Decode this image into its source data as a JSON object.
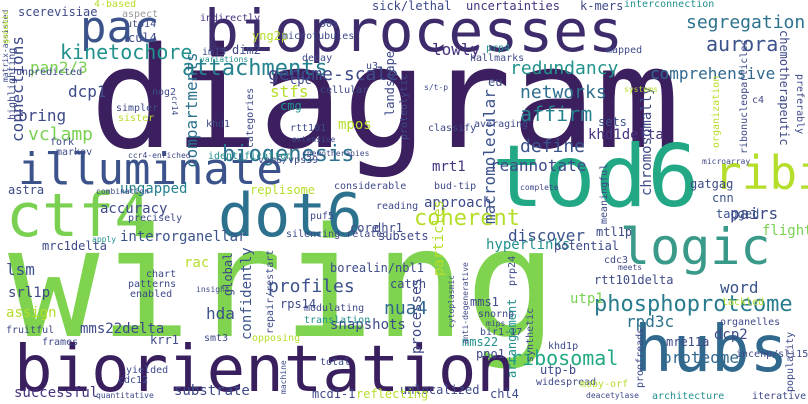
{
  "words": [
    {
      "text": "diagram",
      "color": "#3b1f5e"
    },
    {
      "text": "wiring",
      "color": "#7fd34e"
    },
    {
      "text": "bioprocesses",
      "color": "#3d2b6b"
    },
    {
      "text": "biorientation",
      "color": "#3a1f5f"
    },
    {
      "text": "tod6",
      "color": "#22a884"
    },
    {
      "text": "dot6",
      "color": "#2c728e"
    },
    {
      "text": "ctf4",
      "color": "#7ad151"
    },
    {
      "text": "hubs",
      "color": "#31688e"
    },
    {
      "text": "logic",
      "color": "#3a9a8a"
    },
    {
      "text": "illuminate",
      "color": "#3b528b"
    },
    {
      "text": "ribi",
      "color": "#b5de2b"
    },
    {
      "text": "pac",
      "color": "#3b528b"
    },
    {
      "text": "attachments",
      "color": "#26828e"
    },
    {
      "text": "kinetochore",
      "color": "#21918c"
    },
    {
      "text": "biogenesis",
      "color": "#2c728e"
    },
    {
      "text": "coherent",
      "color": "#b5de2b"
    },
    {
      "text": "phosphoproteome",
      "color": "#287c8e"
    },
    {
      "text": "segregation",
      "color": "#2c728e"
    },
    {
      "text": "aurora",
      "color": "#3b528b"
    },
    {
      "text": "comprehensive",
      "color": "#31688e"
    },
    {
      "text": "genome-scale",
      "color": "#3e4a89"
    },
    {
      "text": "redundancy",
      "color": "#21918c"
    },
    {
      "text": "lowly",
      "color": "#46327e"
    },
    {
      "text": "networks",
      "color": "#2e6f8e"
    },
    {
      "text": "affirm",
      "color": "#26828e"
    },
    {
      "text": "define",
      "color": "#3b528b"
    },
    {
      "text": "reannotate",
      "color": "#3e4a89"
    },
    {
      "text": "khd1delta",
      "color": "#46327e"
    },
    {
      "text": "sets",
      "color": "#3b528b"
    },
    {
      "text": "ribosomal",
      "color": "#22a884"
    },
    {
      "text": "proteome",
      "color": "#31688e"
    },
    {
      "text": "rpd3c",
      "color": "#2c728e"
    },
    {
      "text": "word",
      "color": "#3b528b"
    },
    {
      "text": "pairs",
      "color": "#3e4a89"
    },
    {
      "text": "discover",
      "color": "#3b528b"
    },
    {
      "text": "profiles",
      "color": "#3b528b"
    },
    {
      "text": "nua4",
      "color": "#31688e"
    },
    {
      "text": "hda",
      "color": "#3b528b"
    },
    {
      "text": "bring",
      "color": "#3e4a89"
    },
    {
      "text": "dcp1",
      "color": "#3e4a89"
    },
    {
      "text": "vclamp",
      "color": "#7ad151"
    },
    {
      "text": "connections",
      "color": "#3e4a89"
    },
    {
      "text": "pan2/3",
      "color": "#7ad151"
    },
    {
      "text": "compartments",
      "color": "#2c728e"
    },
    {
      "text": "stfs",
      "color": "#b5de2b"
    },
    {
      "text": "cmg",
      "color": "#21918c"
    },
    {
      "text": "ungapped",
      "color": "#26828e"
    },
    {
      "text": "macromolecular",
      "color": "#3b528b"
    },
    {
      "text": "lsm",
      "color": "#3b528b"
    },
    {
      "text": "snapshots",
      "color": "#3e4a89"
    },
    {
      "text": "successful",
      "color": "#46327e"
    },
    {
      "text": "substrate",
      "color": "#3e4a89"
    },
    {
      "text": "mms22delta",
      "color": "#3e4a89"
    },
    {
      "text": "interorganellar",
      "color": "#3b528b"
    },
    {
      "text": "accuracy",
      "color": "#3e4a89"
    },
    {
      "text": "mms22",
      "color": "#21918c"
    },
    {
      "text": "mms1",
      "color": "#3e4a89"
    },
    {
      "text": "chl4",
      "color": "#3e4a89"
    },
    {
      "text": "rps14",
      "color": "#3e4a89"
    },
    {
      "text": "mrt1",
      "color": "#46327e"
    },
    {
      "text": "dhr1",
      "color": "#3e4a89"
    },
    {
      "text": "approach",
      "color": "#3e4a89"
    },
    {
      "text": "core",
      "color": "#3e4a89"
    },
    {
      "text": "mpos",
      "color": "#b5de2b"
    },
    {
      "text": "flight",
      "color": "#7ad151"
    },
    {
      "text": "utp1",
      "color": "#7ad151"
    },
    {
      "text": "dcp2",
      "color": "#3e4a89"
    },
    {
      "text": "mre11a",
      "color": "#3e4a89"
    },
    {
      "text": "cnn",
      "color": "#3b528b"
    },
    {
      "text": "gatgag",
      "color": "#3e4a89"
    },
    {
      "text": "tagged",
      "color": "#3b528b"
    },
    {
      "text": "chromosomally",
      "color": "#3e4a89"
    },
    {
      "text": "hyperlinks",
      "color": "#21918c"
    },
    {
      "text": "potential",
      "color": "#3e4a89"
    },
    {
      "text": "confidently",
      "color": "#3b528b"
    },
    {
      "text": "particles",
      "color": "#b5de2b"
    },
    {
      "text": "processes",
      "color": "#3e4a89"
    },
    {
      "text": "arrangement",
      "color": "#21918c"
    },
    {
      "text": "unlocalized",
      "color": "#3e4a89"
    },
    {
      "text": "cpc",
      "color": "#3e4a89"
    },
    {
      "text": "dim2",
      "color": "#3e4a89"
    },
    {
      "text": "aspect",
      "color": "#9a9a9a"
    },
    {
      "text": "scerevisiae",
      "color": "#3e4a89"
    },
    {
      "text": "cul4",
      "color": "#3e4a89"
    },
    {
      "text": "4-based",
      "color": "#b5de2b"
    },
    {
      "text": "utp14",
      "color": "#3e4a89"
    },
    {
      "text": "indirectly",
      "color": "#46327e"
    },
    {
      "text": "sick/lethal",
      "color": "#3e4a89"
    },
    {
      "text": "uncertainties",
      "color": "#46327e"
    },
    {
      "text": "k-mers",
      "color": "#3e4a89"
    },
    {
      "text": "interconnection",
      "color": "#21918c"
    },
    {
      "text": "yng2p",
      "color": "#b5de2b"
    },
    {
      "text": "90s",
      "color": "#3e4a89"
    },
    {
      "text": "microtubules",
      "color": "#3e4a89"
    },
    {
      "text": "im13",
      "color": "#3e4a89"
    },
    {
      "text": "variations",
      "color": "#21918c"
    },
    {
      "text": "decay",
      "color": "#3e4a89"
    },
    {
      "text": "u3",
      "color": "#3e4a89"
    },
    {
      "text": "prp4",
      "color": "#21918c"
    },
    {
      "text": "hallmarks",
      "color": "#3e4a89"
    },
    {
      "text": "mapped",
      "color": "#3e4a89"
    },
    {
      "text": "chemotherapeutic",
      "color": "#3e4a89"
    },
    {
      "text": "preferably",
      "color": "#3e4a89"
    },
    {
      "text": "eu",
      "color": "#3e4a89"
    },
    {
      "text": "cellular",
      "color": "#3e4a89"
    },
    {
      "text": "s/t-p",
      "color": "#3e4a89"
    },
    {
      "text": "systems",
      "color": "#b5de2b"
    },
    {
      "text": "nog2",
      "color": "#3e4a89"
    },
    {
      "text": "simpler",
      "color": "#3e4a89"
    },
    {
      "text": "sister",
      "color": "#b5de2b"
    },
    {
      "text": "cr14",
      "color": "#3e4a89"
    },
    {
      "text": "khd1",
      "color": "#3e4a89"
    },
    {
      "text": "categories",
      "color": "#3e4a89"
    },
    {
      "text": "rtt101",
      "color": "#3e4a89"
    },
    {
      "text": "landscape",
      "color": "#3e4a89"
    },
    {
      "text": "proteolytic",
      "color": "#3e4a89"
    },
    {
      "text": "classify",
      "color": "#3e4a89"
    },
    {
      "text": "averaging",
      "color": "#3e4a89"
    },
    {
      "text": "organization",
      "color": "#b5de2b"
    },
    {
      "text": "ribonucleoparticles",
      "color": "#3e4a89"
    },
    {
      "text": "c4",
      "color": "#3e4a89"
    },
    {
      "text": "chemotherapies",
      "color": "#3e4a89"
    },
    {
      "text": "vam6/vps39",
      "color": "#3e4a89"
    },
    {
      "text": "ccr4-enriched",
      "color": "#3e4a89"
    },
    {
      "text": "identification",
      "color": "#21918c"
    },
    {
      "text": "extensive",
      "color": "#3e4a89"
    },
    {
      "text": "markov",
      "color": "#3e4a89"
    },
    {
      "text": "fork",
      "color": "#3e4a89"
    },
    {
      "text": "microarray",
      "color": "#3e4a89"
    },
    {
      "text": "highlighting",
      "color": "#3e4a89"
    },
    {
      "text": "unpredicted",
      "color": "#3e4a89"
    },
    {
      "text": "matrix-assisted",
      "color": "#3e4a89"
    },
    {
      "text": "astra",
      "color": "#3e4a89"
    },
    {
      "text": "combination",
      "color": "#3e4a89"
    },
    {
      "text": "replisome",
      "color": "#b5de2b"
    },
    {
      "text": "considerable",
      "color": "#3e4a89"
    },
    {
      "text": "bud-tip",
      "color": "#3e4a89"
    },
    {
      "text": "meaningful",
      "color": "#3e4a89"
    },
    {
      "text": "reading",
      "color": "#3e4a89"
    },
    {
      "text": "complete",
      "color": "#3e4a89"
    },
    {
      "text": "precisely",
      "color": "#3e4a89"
    },
    {
      "text": "puf5",
      "color": "#3e4a89"
    },
    {
      "text": "silencing-related",
      "color": "#3e4a89"
    },
    {
      "text": "subsets",
      "color": "#3e4a89"
    },
    {
      "text": "mrc1delta",
      "color": "#3e4a89"
    },
    {
      "text": "apply",
      "color": "#21918c"
    },
    {
      "text": "srl1p",
      "color": "#3e4a89"
    },
    {
      "text": "assign",
      "color": "#b5de2b"
    },
    {
      "text": "rac",
      "color": "#b5de2b"
    },
    {
      "text": "chart",
      "color": "#3e4a89"
    },
    {
      "text": "patterns",
      "color": "#3e4a89"
    },
    {
      "text": "enabled",
      "color": "#3e4a89"
    },
    {
      "text": "insight",
      "color": "#3e4a89"
    },
    {
      "text": "global",
      "color": "#3e4a89"
    },
    {
      "text": "borealin/nbl1",
      "color": "#3e4a89"
    },
    {
      "text": "repair/restart",
      "color": "#3e4a89"
    },
    {
      "text": "modulating",
      "color": "#3e4a89"
    },
    {
      "text": "translation",
      "color": "#21918c"
    },
    {
      "text": "catch",
      "color": "#3e4a89"
    },
    {
      "text": "cytoplasmic",
      "color": "#3e4a89"
    },
    {
      "text": "snornp",
      "color": "#3e4a89"
    },
    {
      "text": "prp24",
      "color": "#3e4a89"
    },
    {
      "text": "mips",
      "color": "#3e4a89"
    },
    {
      "text": "anti-degenerative",
      "color": "#3e4a89"
    },
    {
      "text": "bir1-17",
      "color": "#3e4a89"
    },
    {
      "text": "pno1",
      "color": "#3e4a89"
    },
    {
      "text": "cdc3",
      "color": "#3e4a89"
    },
    {
      "text": "mtl1p",
      "color": "#3e4a89"
    },
    {
      "text": "rtt101delta",
      "color": "#3e4a89"
    },
    {
      "text": "meets",
      "color": "#3e4a89"
    },
    {
      "text": "tackled",
      "color": "#b5de2b"
    },
    {
      "text": "organelles",
      "color": "#3e4a89"
    },
    {
      "text": "incenp/sli15",
      "color": "#3e4a89"
    },
    {
      "text": "khd1p",
      "color": "#3e4a89"
    },
    {
      "text": "synthetic",
      "color": "#3e4a89"
    },
    {
      "text": "proofreads",
      "color": "#3e4a89"
    },
    {
      "text": "fruitful",
      "color": "#3e4a89"
    },
    {
      "text": "frames",
      "color": "#3e4a89"
    },
    {
      "text": "krr1",
      "color": "#3e4a89"
    },
    {
      "text": "smt3",
      "color": "#3e4a89"
    },
    {
      "text": "opposing",
      "color": "#b5de2b"
    },
    {
      "text": "total",
      "color": "#3e4a89"
    },
    {
      "text": "yielded",
      "color": "#3e4a89"
    },
    {
      "text": "cdc12",
      "color": "#3e4a89"
    },
    {
      "text": "quantitative",
      "color": "#3e4a89"
    },
    {
      "text": "mcd1-1",
      "color": "#3e4a89"
    },
    {
      "text": "reflecting",
      "color": "#b5de2b"
    },
    {
      "text": "machine",
      "color": "#3e4a89"
    },
    {
      "text": "widespread",
      "color": "#3e4a89"
    },
    {
      "text": "utp-b",
      "color": "#3e4a89"
    },
    {
      "text": "moby-orf",
      "color": "#b5de2b"
    },
    {
      "text": "deacetylase",
      "color": "#3e4a89"
    },
    {
      "text": "architecture",
      "color": "#21918c"
    },
    {
      "text": "iterative",
      "color": "#3e4a89"
    },
    {
      "text": "popularity",
      "color": "#3e4a89"
    },
    {
      "text": "genomic",
      "color": "#b5de2b"
    }
  ]
}
